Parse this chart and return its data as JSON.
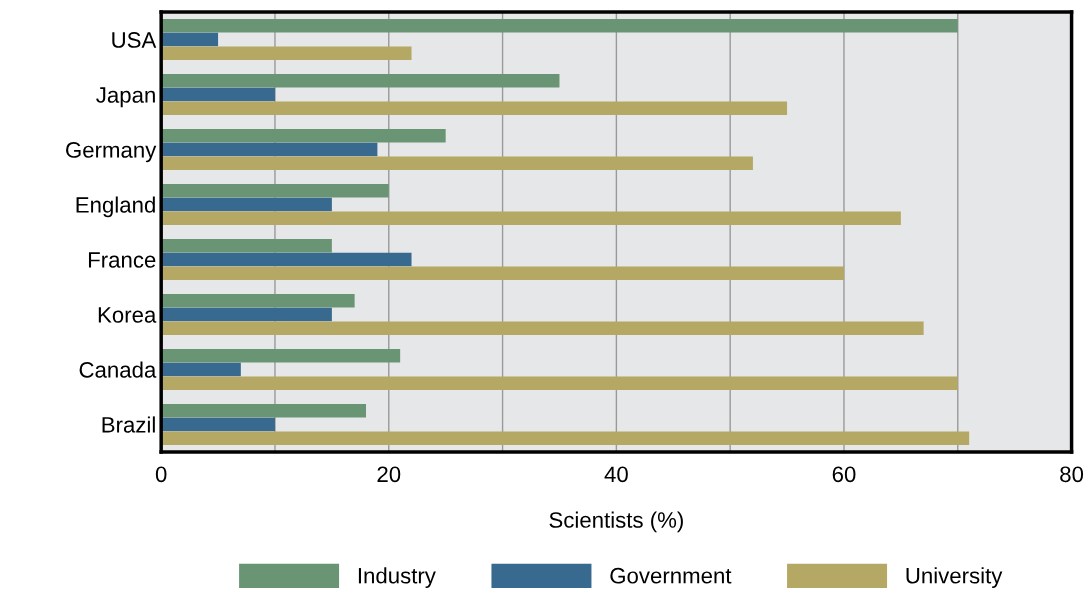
{
  "chart_data": {
    "type": "bar",
    "orientation": "horizontal",
    "xlabel": "Scientists (%)",
    "categories": [
      "USA",
      "Japan",
      "Germany",
      "England",
      "France",
      "Korea",
      "Canada",
      "Brazil"
    ],
    "series": [
      {
        "name": "Industry",
        "color": "#6a9575",
        "values": [
          70,
          35,
          25,
          20,
          15,
          17,
          21,
          18
        ]
      },
      {
        "name": "Government",
        "color": "#376a8e",
        "values": [
          5,
          10,
          19,
          15,
          22,
          15,
          7,
          10
        ]
      },
      {
        "name": "University",
        "color": "#b5a865",
        "values": [
          22,
          55,
          52,
          65,
          60,
          67,
          70,
          71
        ]
      }
    ],
    "xlim": [
      0,
      80
    ],
    "xticks": [
      0,
      {
        "value": 10,
        "label": null
      },
      20,
      {
        "value": 30,
        "label": null
      },
      40,
      {
        "value": 50,
        "label": null
      },
      60,
      {
        "value": 70,
        "label": null
      },
      80
    ],
    "grid": "x",
    "legend": "bottom"
  }
}
